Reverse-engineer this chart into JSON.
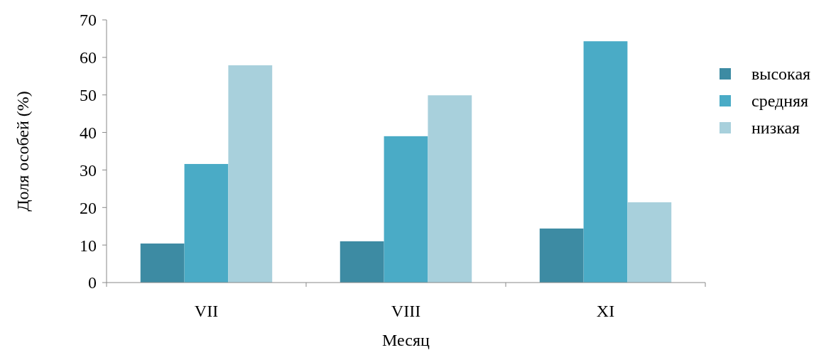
{
  "chart_data": {
    "type": "bar",
    "xlabel": "Месяц",
    "ylabel": "Доля особей (%)",
    "categories": [
      "VII",
      "VIII",
      "XI"
    ],
    "series": [
      {
        "name": "высокая",
        "color": "#3d8ba3",
        "values": [
          10.4,
          11.0,
          14.4
        ]
      },
      {
        "name": "средняя",
        "color": "#4aabc6",
        "values": [
          31.6,
          39.0,
          64.3
        ]
      },
      {
        "name": "низкая",
        "color": "#a8d0dc",
        "values": [
          57.9,
          49.9,
          21.4
        ]
      }
    ],
    "ylim": [
      0,
      70
    ],
    "yticks": [
      0,
      10,
      20,
      30,
      40,
      50,
      60,
      70
    ],
    "grid": false,
    "legend": "right"
  }
}
